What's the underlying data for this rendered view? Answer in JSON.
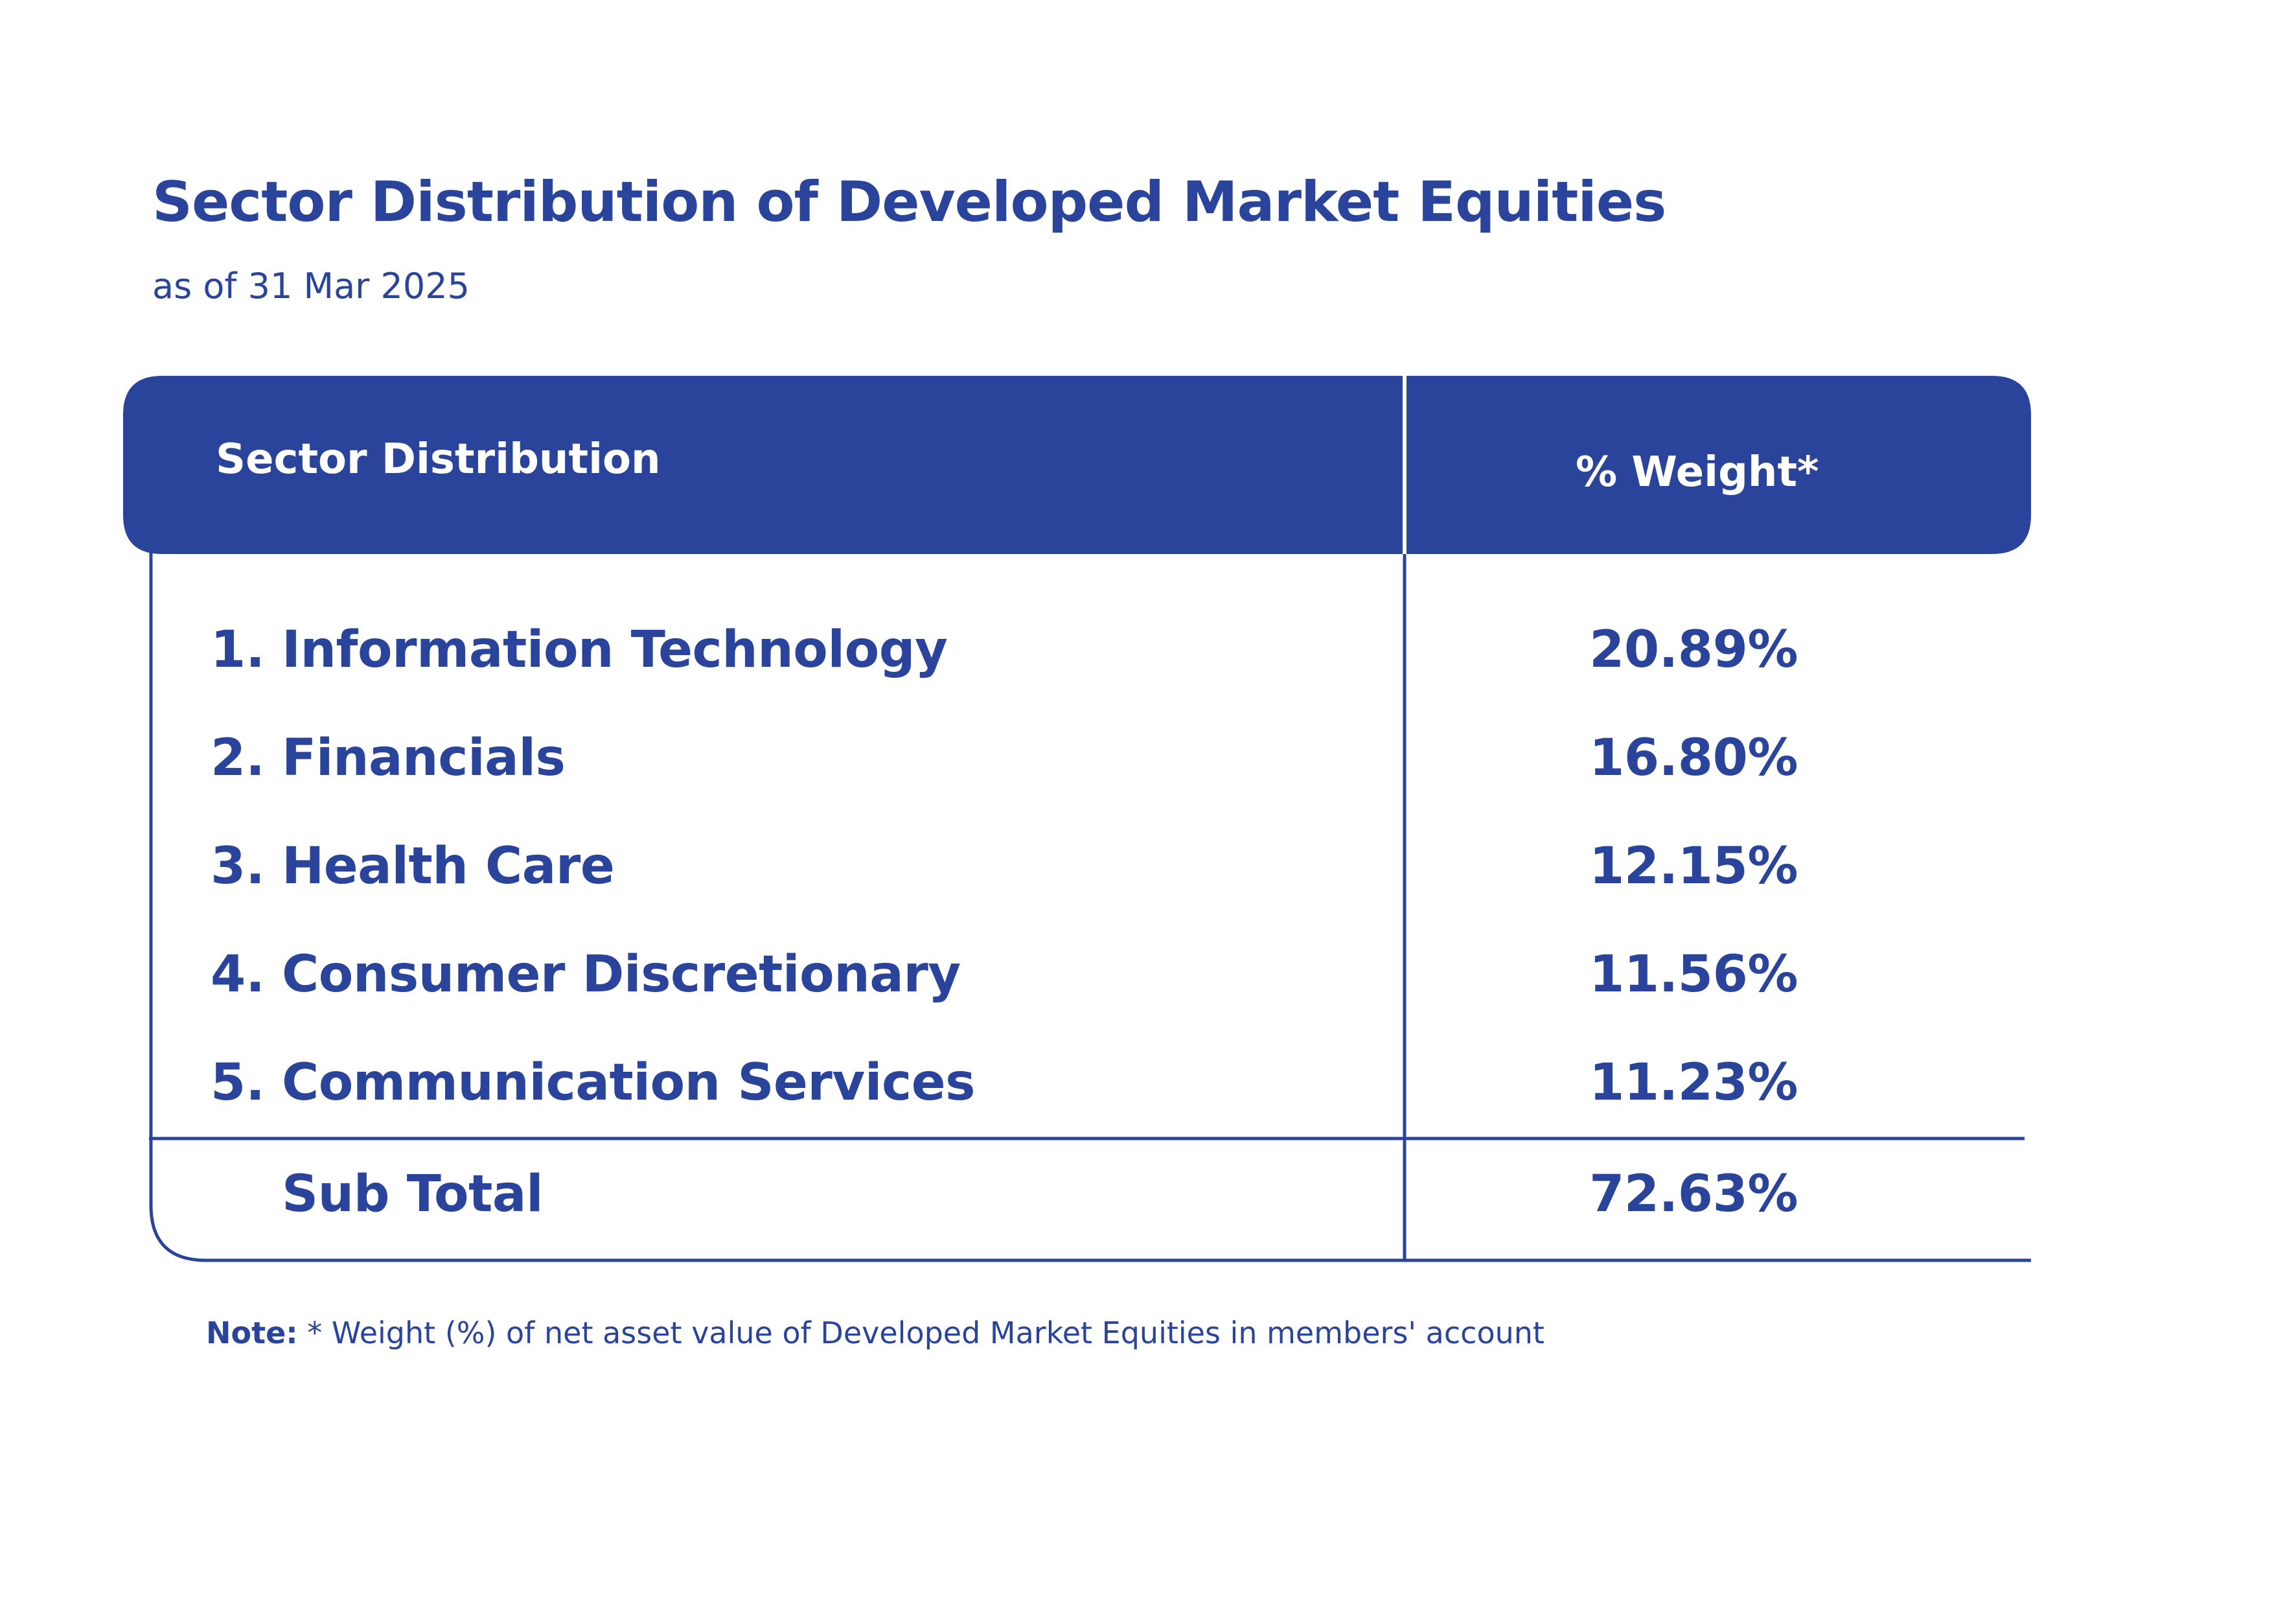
{
  "title": "Sector Distribution of Developed Market Equities",
  "subtitle": "as of  31 Mar 2025",
  "chart_data": {
    "type": "table",
    "columns": [
      "Sector Distribution",
      "% Weight*"
    ],
    "rows": [
      {
        "num": "1.",
        "sector": "Information Technology",
        "weight": "20.89%"
      },
      {
        "num": "2.",
        "sector": "Financials",
        "weight": "16.80%"
      },
      {
        "num": "3.",
        "sector": "Health Care",
        "weight": "12.15%"
      },
      {
        "num": "4.",
        "sector": "Consumer Discretionary",
        "weight": "11.56%"
      },
      {
        "num": "5.",
        "sector": "Communication Services",
        "weight": "11.23%"
      }
    ],
    "subtotal": {
      "label": "Sub Total",
      "weight": "72.63%"
    }
  },
  "note": {
    "label": "Note:",
    "text": " * Weight (%) of net asset value of Developed Market Equities in members' account"
  },
  "colors": {
    "primary": "#2a449c",
    "background": "#ffffff"
  }
}
